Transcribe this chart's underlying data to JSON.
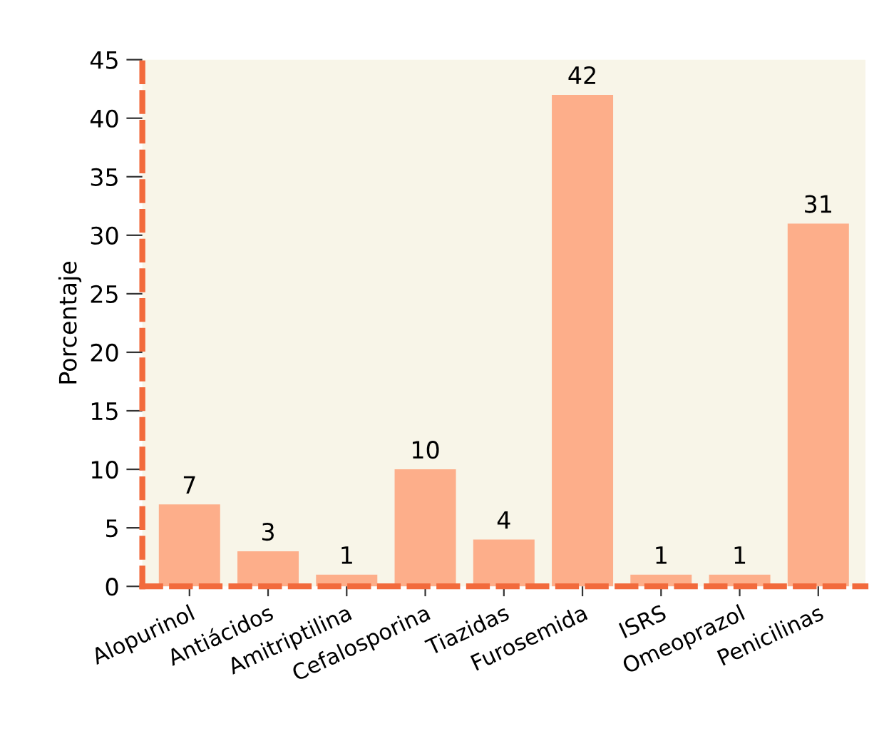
{
  "chart_data": {
    "type": "bar",
    "ylabel": "Porcentaje",
    "categories": [
      "Alopurinol",
      "Antiácidos",
      "Amitriptilina",
      "Cefalosporina",
      "Tiazidas",
      "Furosemida",
      "ISRS",
      "Omeoprazol",
      "Penicilinas"
    ],
    "values": [
      7,
      3,
      1,
      10,
      4,
      42,
      1,
      1,
      31
    ],
    "color": "#fdae8a",
    "ylim": [
      0,
      45
    ],
    "yticks": [
      0,
      5,
      10,
      15,
      20,
      25,
      30,
      35,
      40,
      45
    ],
    "data_labels": true,
    "grid": false,
    "legend": false
  }
}
